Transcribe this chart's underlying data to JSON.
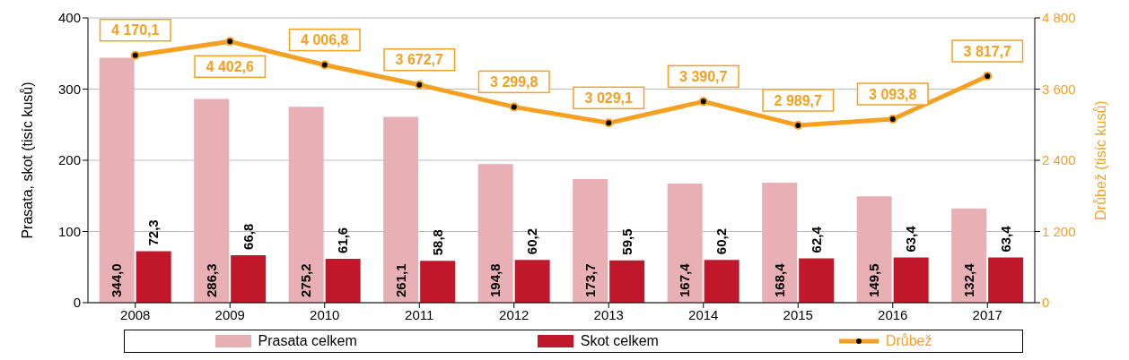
{
  "chart_data": {
    "type": "bar",
    "categories": [
      "2008",
      "2009",
      "2010",
      "2011",
      "2012",
      "2013",
      "2014",
      "2015",
      "2016",
      "2017"
    ],
    "ylabel": "Prasata, skot  (tisíc kusů)",
    "y2label": "Drůbež (tisíc kusů)",
    "ylim": [
      0,
      400
    ],
    "yticks": [
      0,
      100,
      200,
      300,
      400
    ],
    "y2lim": [
      0,
      4800
    ],
    "y2ticks": [
      0,
      {
        "value": 1200,
        "label": "1 200"
      },
      {
        "value": 2400,
        "label": "2 400"
      },
      {
        "value": 3600,
        "label": "3 600"
      },
      {
        "value": 4800,
        "label": "4 800"
      }
    ],
    "grid": "y",
    "legend": "bottom",
    "marker": "circle",
    "line_style": "solid",
    "series": [
      {
        "name": "Prasata celkem",
        "color": "#e8b0b4",
        "values": [
          344.0,
          286.3,
          275.2,
          261.1,
          194.8,
          173.7,
          167.4,
          168.4,
          149.5,
          132.4
        ],
        "value_labels": [
          "344,0",
          "286,3",
          "275,2",
          "261,1",
          "194,8",
          "173,7",
          "167,4",
          "168,4",
          "149,5",
          "132,4"
        ]
      },
      {
        "name": "Skot celkem",
        "color": "#c0182a",
        "values": [
          72.3,
          66.8,
          61.6,
          58.8,
          60.2,
          59.5,
          60.2,
          62.4,
          63.4,
          63.4
        ],
        "value_labels": [
          "72,3",
          "66,8",
          "61,6",
          "58,8",
          "60,2",
          "59,5",
          "60,2",
          "62,4",
          "63,4",
          "63,4"
        ]
      },
      {
        "name": "Drůbež",
        "type": "line",
        "axis": "y2",
        "color": "#f5a020",
        "values": [
          4170.1,
          4402.6,
          4006.8,
          3672.7,
          3299.8,
          3029.1,
          3390.7,
          2989.7,
          3093.8,
          3817.7
        ],
        "value_labels": [
          "4 170,1",
          "4 402,6",
          "4 006,8",
          "3 672,7",
          "3 299,8",
          "3 029,1",
          "3 390,7",
          "2 989,7",
          "3 093,8",
          "3 817,7"
        ]
      }
    ]
  }
}
